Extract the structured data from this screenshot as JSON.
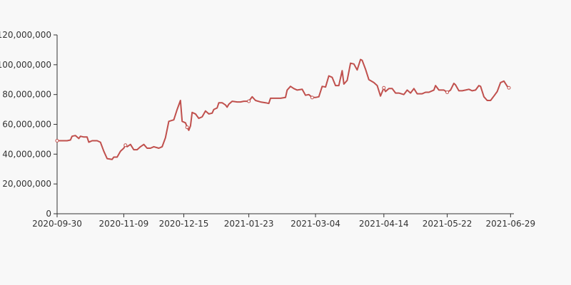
{
  "chart_data": {
    "type": "line",
    "title": "",
    "xlabel": "",
    "ylabel": "",
    "x_tick_labels": [
      "2020-09-30",
      "2020-11-09",
      "2020-12-15",
      "2021-01-23",
      "2021-03-04",
      "2021-04-14",
      "2021-05-22",
      "2021-06-29"
    ],
    "y_tick_labels": [
      "0",
      "20,000,000",
      "40,000,000",
      "60,000,000",
      "80,000,000",
      "100,000,000",
      "120,000,000"
    ],
    "ylim": [
      0,
      120000000
    ],
    "xlim": [
      "2020-09-30",
      "2021-07-01"
    ],
    "grid": false,
    "line_color": "#c0504d",
    "marker_color": "#ffffff",
    "series": [
      {
        "values": [
          [
            "2020-09-30",
            49000000
          ],
          [
            "2020-10-02",
            49000000
          ],
          [
            "2020-10-06",
            49000000
          ],
          [
            "2020-10-08",
            49500000
          ],
          [
            "2020-10-09",
            52000000
          ],
          [
            "2020-10-11",
            52500000
          ],
          [
            "2020-10-13",
            50500000
          ],
          [
            "2020-10-14",
            52000000
          ],
          [
            "2020-10-16",
            51500000
          ],
          [
            "2020-10-18",
            51500000
          ],
          [
            "2020-10-19",
            48000000
          ],
          [
            "2020-10-21",
            49000000
          ],
          [
            "2020-10-24",
            49000000
          ],
          [
            "2020-10-26",
            48000000
          ],
          [
            "2020-10-28",
            42000000
          ],
          [
            "2020-10-30",
            37000000
          ],
          [
            "2020-11-02",
            36500000
          ],
          [
            "2020-11-03",
            38000000
          ],
          [
            "2020-11-05",
            38000000
          ],
          [
            "2020-11-07",
            42000000
          ],
          [
            "2020-11-09",
            44000000
          ],
          [
            "2020-11-10",
            46000000
          ],
          [
            "2020-11-11",
            45000000
          ],
          [
            "2020-11-13",
            46500000
          ],
          [
            "2020-11-15",
            43000000
          ],
          [
            "2020-11-17",
            43000000
          ],
          [
            "2020-11-19",
            45000000
          ],
          [
            "2020-11-21",
            46500000
          ],
          [
            "2020-11-23",
            44000000
          ],
          [
            "2020-11-25",
            44000000
          ],
          [
            "2020-11-27",
            45000000
          ],
          [
            "2020-11-30",
            44000000
          ],
          [
            "2020-12-02",
            45000000
          ],
          [
            "2020-12-04",
            51000000
          ],
          [
            "2020-12-06",
            62000000
          ],
          [
            "2020-12-09",
            63000000
          ],
          [
            "2020-12-11",
            70000000
          ],
          [
            "2020-12-13",
            76000000
          ],
          [
            "2020-12-14",
            62000000
          ],
          [
            "2020-12-16",
            61000000
          ],
          [
            "2020-12-17",
            58000000
          ],
          [
            "2020-12-18",
            56000000
          ],
          [
            "2020-12-19",
            59000000
          ],
          [
            "2020-12-20",
            68000000
          ],
          [
            "2020-12-22",
            67000000
          ],
          [
            "2020-12-24",
            64000000
          ],
          [
            "2020-12-26",
            65000000
          ],
          [
            "2020-12-28",
            69000000
          ],
          [
            "2020-12-30",
            67000000
          ],
          [
            "2021-01-01",
            67500000
          ],
          [
            "2021-01-02",
            70000000
          ],
          [
            "2021-01-04",
            71000000
          ],
          [
            "2021-01-05",
            74500000
          ],
          [
            "2021-01-07",
            74500000
          ],
          [
            "2021-01-09",
            73000000
          ],
          [
            "2021-01-10",
            71500000
          ],
          [
            "2021-01-11",
            73500000
          ],
          [
            "2021-01-13",
            75500000
          ],
          [
            "2021-01-16",
            75000000
          ],
          [
            "2021-01-18",
            75000000
          ],
          [
            "2021-01-20",
            75500000
          ],
          [
            "2021-01-23",
            75500000
          ],
          [
            "2021-01-25",
            78500000
          ],
          [
            "2021-01-27",
            76000000
          ],
          [
            "2021-01-30",
            75000000
          ],
          [
            "2021-02-02",
            74500000
          ],
          [
            "2021-02-04",
            74000000
          ],
          [
            "2021-02-05",
            77500000
          ],
          [
            "2021-02-08",
            77500000
          ],
          [
            "2021-02-11",
            77500000
          ],
          [
            "2021-02-14",
            78000000
          ],
          [
            "2021-02-15",
            83000000
          ],
          [
            "2021-02-17",
            85500000
          ],
          [
            "2021-02-19",
            84000000
          ],
          [
            "2021-02-21",
            83000000
          ],
          [
            "2021-02-24",
            83500000
          ],
          [
            "2021-02-26",
            79500000
          ],
          [
            "2021-02-28",
            80000000
          ],
          [
            "2021-03-02",
            78000000
          ],
          [
            "2021-03-04",
            78000000
          ],
          [
            "2021-03-06",
            78500000
          ],
          [
            "2021-03-08",
            85500000
          ],
          [
            "2021-03-10",
            85000000
          ],
          [
            "2021-03-12",
            92500000
          ],
          [
            "2021-03-14",
            91500000
          ],
          [
            "2021-03-16",
            86000000
          ],
          [
            "2021-03-18",
            86000000
          ],
          [
            "2021-03-20",
            96000000
          ],
          [
            "2021-03-21",
            87000000
          ],
          [
            "2021-03-23",
            89500000
          ],
          [
            "2021-03-25",
            101000000
          ],
          [
            "2021-03-27",
            100500000
          ],
          [
            "2021-03-29",
            96500000
          ],
          [
            "2021-03-31",
            103500000
          ],
          [
            "2021-04-01",
            103000000
          ],
          [
            "2021-04-03",
            97000000
          ],
          [
            "2021-04-05",
            90000000
          ],
          [
            "2021-04-08",
            88000000
          ],
          [
            "2021-04-10",
            86000000
          ],
          [
            "2021-04-12",
            79000000
          ],
          [
            "2021-04-14",
            84500000
          ],
          [
            "2021-04-15",
            82000000
          ],
          [
            "2021-04-17",
            84000000
          ],
          [
            "2021-04-19",
            84000000
          ],
          [
            "2021-04-21",
            81000000
          ],
          [
            "2021-04-23",
            81000000
          ],
          [
            "2021-04-26",
            80000000
          ],
          [
            "2021-04-28",
            83000000
          ],
          [
            "2021-04-30",
            81000000
          ],
          [
            "2021-05-02",
            84000000
          ],
          [
            "2021-05-04",
            80500000
          ],
          [
            "2021-05-07",
            80500000
          ],
          [
            "2021-05-09",
            81500000
          ],
          [
            "2021-05-11",
            81500000
          ],
          [
            "2021-05-14",
            83000000
          ],
          [
            "2021-05-15",
            86000000
          ],
          [
            "2021-05-17",
            83000000
          ],
          [
            "2021-05-20",
            83000000
          ],
          [
            "2021-05-22",
            81500000
          ],
          [
            "2021-05-24",
            83000000
          ],
          [
            "2021-05-26",
            87500000
          ],
          [
            "2021-05-27",
            86500000
          ],
          [
            "2021-05-29",
            82500000
          ],
          [
            "2021-05-31",
            82500000
          ],
          [
            "2021-06-02",
            83000000
          ],
          [
            "2021-06-04",
            83500000
          ],
          [
            "2021-06-06",
            82500000
          ],
          [
            "2021-06-08",
            83000000
          ],
          [
            "2021-06-10",
            86000000
          ],
          [
            "2021-06-11",
            85500000
          ],
          [
            "2021-06-13",
            78500000
          ],
          [
            "2021-06-15",
            76000000
          ],
          [
            "2021-06-17",
            76000000
          ],
          [
            "2021-06-19",
            79000000
          ],
          [
            "2021-06-21",
            82000000
          ],
          [
            "2021-06-23",
            88000000
          ],
          [
            "2021-06-25",
            89000000
          ],
          [
            "2021-06-27",
            85500000
          ],
          [
            "2021-06-28",
            84500000
          ]
        ],
        "markers": [
          [
            "2020-09-30",
            49000000
          ],
          [
            "2020-11-10",
            46000000
          ],
          [
            "2020-12-17",
            58000000
          ],
          [
            "2021-01-23",
            75500000
          ],
          [
            "2021-03-02",
            78000000
          ],
          [
            "2021-04-14",
            84500000
          ],
          [
            "2021-05-22",
            81500000
          ],
          [
            "2021-06-28",
            84500000
          ]
        ]
      }
    ]
  }
}
